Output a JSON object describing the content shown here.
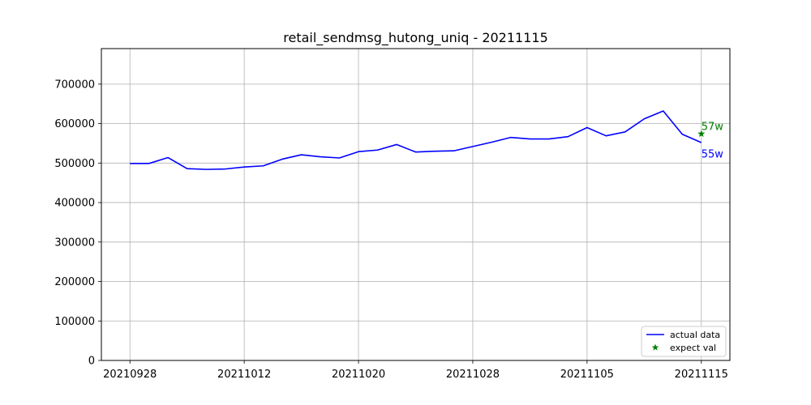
{
  "chart_data": {
    "type": "line",
    "title": "retail_sendmsg_hutong_uniq - 20211115",
    "xlabel": "",
    "ylabel": "",
    "xlim": [
      -1.5,
      31.5
    ],
    "ylim": [
      0,
      790000
    ],
    "grid": true,
    "legend_position": "bottom-right",
    "x_tick_labels": [
      {
        "x": 0,
        "label": "20210928"
      },
      {
        "x": 6,
        "label": "20211012"
      },
      {
        "x": 12,
        "label": "20211020"
      },
      {
        "x": 18,
        "label": "20211028"
      },
      {
        "x": 24,
        "label": "20211105"
      },
      {
        "x": 30,
        "label": "20211115"
      }
    ],
    "y_ticks": [
      0,
      100000,
      200000,
      300000,
      400000,
      500000,
      600000,
      700000
    ],
    "y_tick_labels": [
      "0",
      "100000",
      "200000",
      "300000",
      "400000",
      "500000",
      "600000",
      "700000"
    ],
    "series": [
      {
        "name": "actual data",
        "color": "#0000ff",
        "marker": "line",
        "values": [
          499000,
          499000,
          514000,
          486000,
          484000,
          485000,
          490000,
          493000,
          510000,
          521000,
          516000,
          513000,
          529000,
          533000,
          547000,
          528000,
          530000,
          531000,
          542000,
          553000,
          565000,
          561000,
          561000,
          567000,
          590000,
          569000,
          579000,
          612000,
          632000,
          573000,
          552000
        ]
      },
      {
        "name": "expect val",
        "color": "#008000",
        "marker": "star",
        "points": [
          {
            "x": 30,
            "y": 574000
          }
        ]
      }
    ],
    "annotations": [
      {
        "text": "57w",
        "color": "#008000",
        "x": 30,
        "y": 592000
      },
      {
        "text": "55w",
        "color": "#0000ff",
        "x": 30,
        "y": 522000
      }
    ]
  }
}
